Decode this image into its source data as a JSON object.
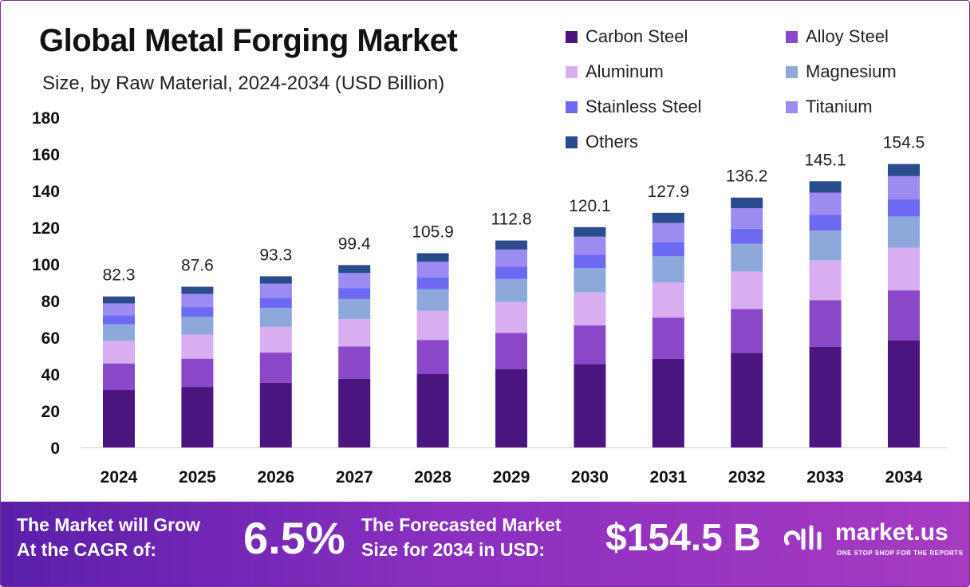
{
  "chart_data": {
    "type": "bar",
    "stacked": true,
    "title": "Global Metal Forging Market",
    "subtitle": "Size, by Raw Material, 2024-2034 (USD Billion)",
    "xlabel": "",
    "ylabel": "",
    "ylim": [
      0,
      180
    ],
    "yticks": [
      0,
      20,
      40,
      60,
      80,
      100,
      120,
      140,
      160,
      180
    ],
    "grid": false,
    "legend_position": "top-right",
    "categories": [
      "2024",
      "2025",
      "2026",
      "2027",
      "2028",
      "2029",
      "2030",
      "2031",
      "2032",
      "2033",
      "2034"
    ],
    "totals": [
      82.3,
      87.6,
      93.3,
      99.4,
      105.9,
      112.8,
      120.1,
      127.9,
      136.2,
      145.1,
      154.5
    ],
    "series": [
      {
        "name": "Carbon Steel",
        "color": "#4b1580",
        "values": [
          31.3,
          33.0,
          35.3,
          37.5,
          40.0,
          42.6,
          45.4,
          48.3,
          51.5,
          54.8,
          58.4
        ]
      },
      {
        "name": "Alloy Steel",
        "color": "#8a48c9",
        "values": [
          14.5,
          15.4,
          16.4,
          17.5,
          18.6,
          19.8,
          21.1,
          22.5,
          24.0,
          25.5,
          27.2
        ]
      },
      {
        "name": "Aluminum",
        "color": "#d8aef0",
        "values": [
          12.3,
          13.1,
          14.0,
          14.9,
          15.9,
          16.9,
          18.0,
          19.2,
          20.4,
          21.8,
          23.2
        ]
      },
      {
        "name": "Magnesium",
        "color": "#8fa8dc",
        "values": [
          9.1,
          9.7,
          10.3,
          11.0,
          11.7,
          12.5,
          13.3,
          14.2,
          15.1,
          16.1,
          17.1
        ]
      },
      {
        "name": "Stainless Steel",
        "color": "#6e69f2",
        "values": [
          4.9,
          5.3,
          5.6,
          6.0,
          6.4,
          6.8,
          7.2,
          7.7,
          8.2,
          8.7,
          9.3
        ]
      },
      {
        "name": "Titanium",
        "color": "#9c8cf2",
        "values": [
          6.4,
          7.2,
          7.7,
          8.2,
          8.7,
          9.3,
          9.9,
          10.5,
          11.2,
          12.0,
          12.7
        ]
      },
      {
        "name": "Others",
        "color": "#2a4b8c",
        "values": [
          3.8,
          3.9,
          4.0,
          4.3,
          4.6,
          4.9,
          5.2,
          5.5,
          5.8,
          6.2,
          6.6
        ]
      }
    ]
  },
  "footer": {
    "cagr_label_line1": "The Market will Grow",
    "cagr_label_line2": "At the CAGR of:",
    "cagr_value": "6.5%",
    "forecast_label_line1": "The Forecasted Market",
    "forecast_label_line2": "Size for 2034 in USD:",
    "forecast_value": "$154.5 B",
    "brand_name": "market.us",
    "brand_tagline": "ONE STOP SHOP FOR THE REPORTS"
  }
}
